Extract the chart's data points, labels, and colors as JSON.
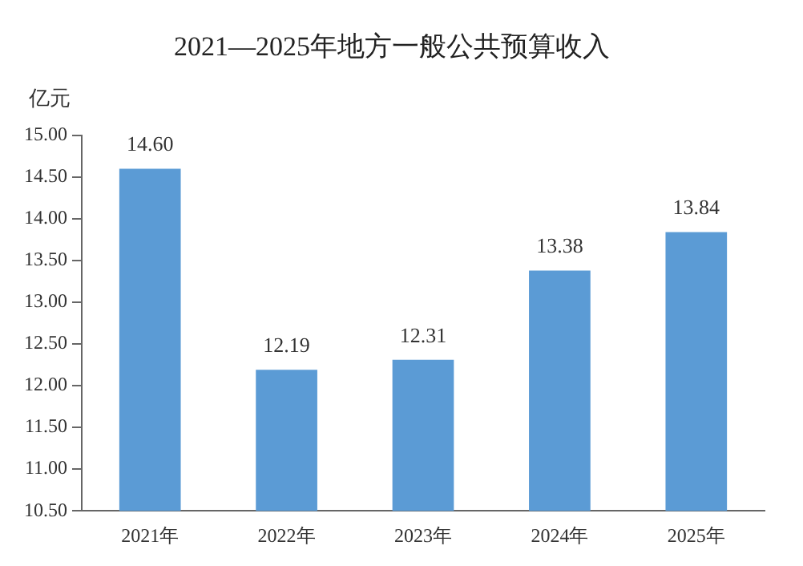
{
  "chart_data": {
    "type": "bar",
    "title": "2021—2025年地方一般公共预算收入",
    "ylabel": "亿元",
    "categories": [
      "2021年",
      "2022年",
      "2023年",
      "2024年",
      "2025年"
    ],
    "values": [
      14.6,
      12.19,
      12.31,
      13.38,
      13.84
    ],
    "value_labels": [
      "14.60",
      "12.19",
      "12.31",
      "13.38",
      "13.84"
    ],
    "color": "#5b9bd5",
    "ylim": [
      10.5,
      15
    ],
    "yticks": [
      {
        "value": 10.5,
        "label": "10.50"
      },
      {
        "value": 11,
        "label": "11.00"
      },
      {
        "value": 11.5,
        "label": "11.50"
      },
      {
        "value": 12,
        "label": "12.00"
      },
      {
        "value": 12.5,
        "label": "12.50"
      },
      {
        "value": 13,
        "label": "13.00"
      },
      {
        "value": 13.5,
        "label": "13.50"
      },
      {
        "value": 14,
        "label": "14.00"
      },
      {
        "value": 14.5,
        "label": "14.50"
      },
      {
        "value": 15,
        "label": "15.00"
      }
    ],
    "grid": false,
    "legend": false
  }
}
